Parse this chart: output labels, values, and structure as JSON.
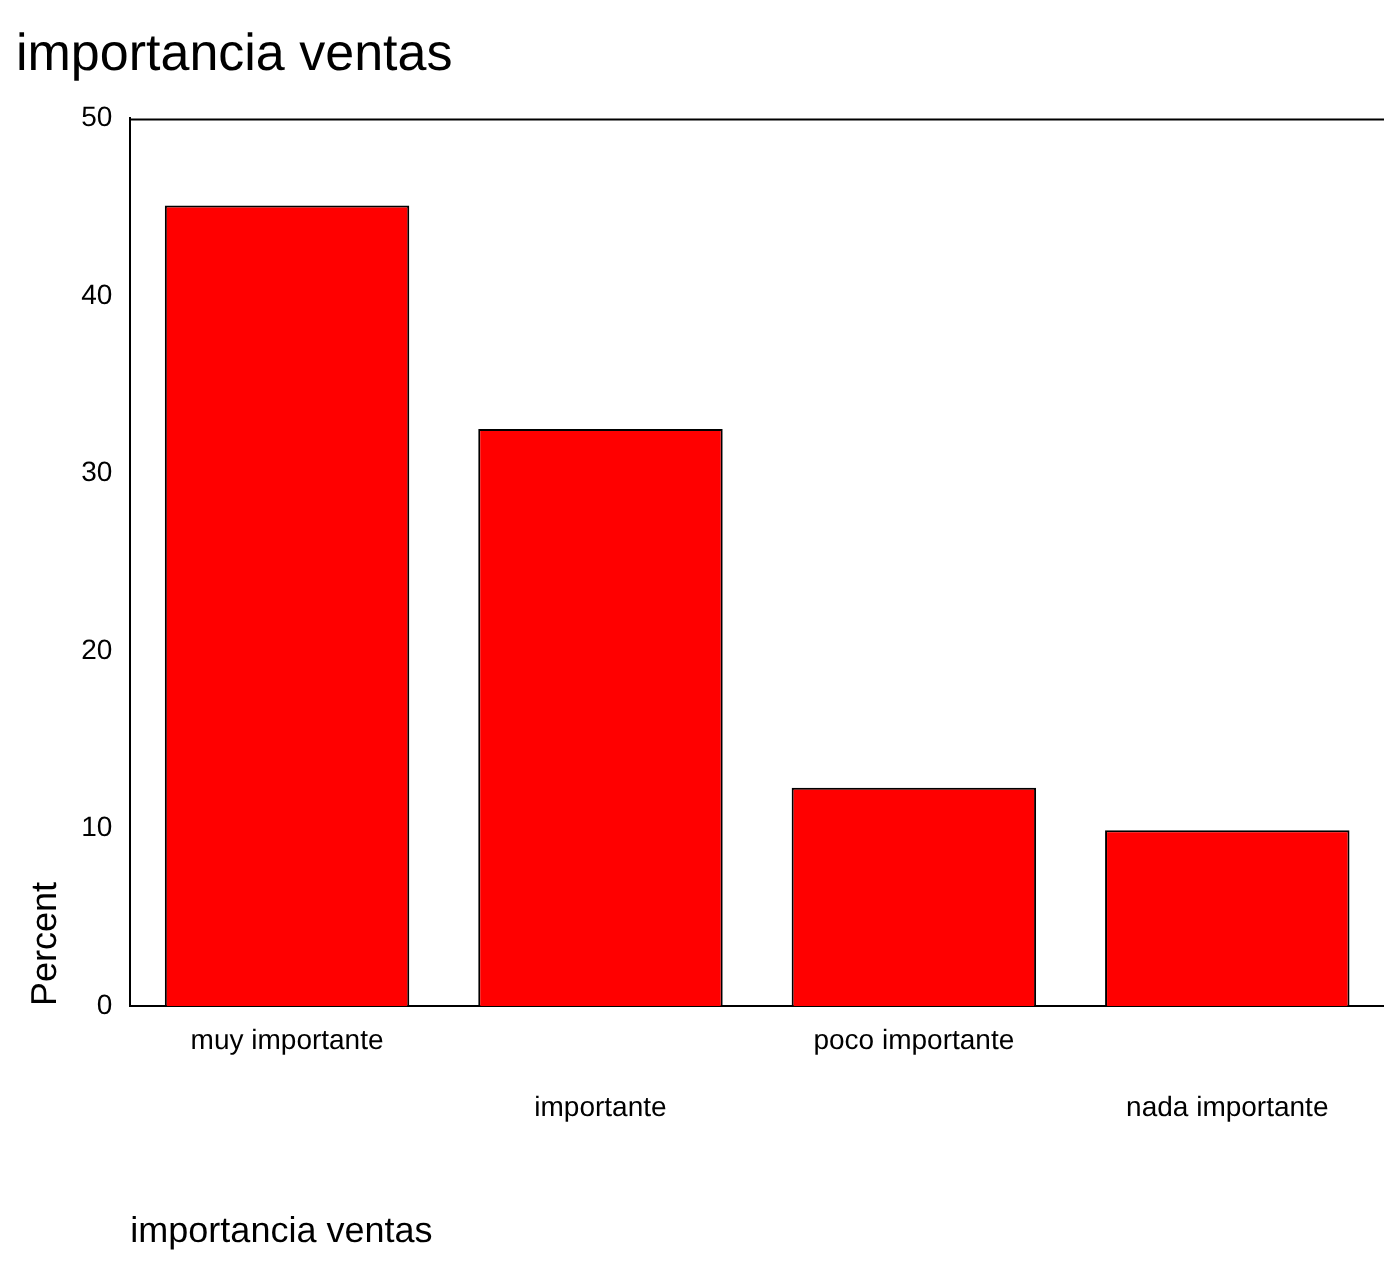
{
  "chart_data": {
    "type": "bar",
    "title": "importancia ventas",
    "xlabel": "importancia ventas",
    "ylabel": "Percent",
    "categories": [
      "muy importante",
      "importante",
      "poco importante",
      "nada importante"
    ],
    "values": [
      45.1,
      32.5,
      12.3,
      9.9
    ],
    "color": "#ff0000",
    "ylim": [
      0,
      50
    ],
    "yticks": [
      0,
      10,
      20,
      30,
      40,
      50
    ],
    "grid": false,
    "legend": false
  }
}
